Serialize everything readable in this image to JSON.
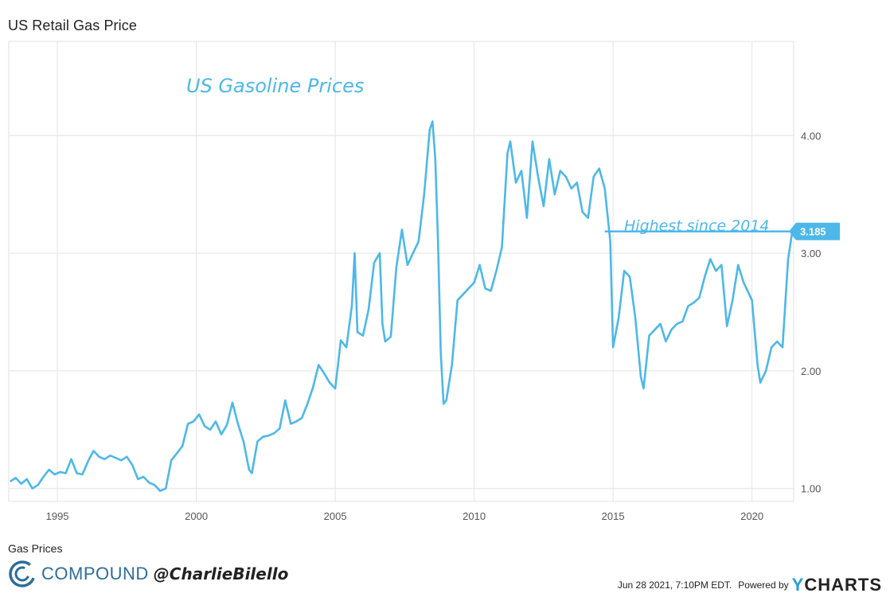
{
  "header": {
    "title": "US Retail Gas Price"
  },
  "footer": {
    "source_label": "Gas Prices",
    "brand_name": "COMPOUND",
    "brand_handle": "@CharlieBilello",
    "date": "Jun 28 2021, 7:10PM EDT.",
    "powered_by": "Powered by",
    "logo_first": "Y",
    "logo_rest": "CHARTS"
  },
  "colors": {
    "line": "#4db8e8",
    "grid": "#e4e4e4",
    "axis_text": "#555555",
    "brand": "#2d6e98",
    "logo_accent": "#2a9fd6"
  },
  "chart_data": {
    "type": "line",
    "title": "",
    "xlabel": "",
    "ylabel": "",
    "xlim": [
      1993.25,
      2021.5
    ],
    "ylim": [
      0.89,
      4.8
    ],
    "x_ticks": [
      1995,
      2000,
      2005,
      2010,
      2015,
      2020
    ],
    "x_tick_labels": [
      "1995",
      "2000",
      "2005",
      "2010",
      "2015",
      "2020"
    ],
    "y_ticks": [
      1,
      2,
      3,
      4
    ],
    "y_tick_labels": [
      "1.00",
      "2.00",
      "3.00",
      "4.00"
    ],
    "grid": true,
    "y_axis_position": "right",
    "series": [
      {
        "x": [
          1993.3,
          1993.5,
          1993.7,
          1993.9,
          1994.1,
          1994.3,
          1994.5,
          1994.7,
          1994.9,
          1995.1,
          1995.3,
          1995.5,
          1995.7,
          1995.9,
          1996.1,
          1996.3,
          1996.5,
          1996.7,
          1996.9,
          1997.1,
          1997.3,
          1997.5,
          1997.7,
          1997.9,
          1998.1,
          1998.3,
          1998.5,
          1998.7,
          1998.9,
          1999.1,
          1999.3,
          1999.5,
          1999.7,
          1999.9,
          2000.1,
          2000.3,
          2000.5,
          2000.7,
          2000.9,
          2001.1,
          2001.3,
          2001.5,
          2001.7,
          2001.9,
          2002.0,
          2002.2,
          2002.4,
          2002.6,
          2002.8,
          2003.0,
          2003.2,
          2003.4,
          2003.6,
          2003.8,
          2004.0,
          2004.2,
          2004.4,
          2004.6,
          2004.8,
          2005.0,
          2005.2,
          2005.4,
          2005.6,
          2005.7,
          2005.8,
          2006.0,
          2006.2,
          2006.4,
          2006.6,
          2006.7,
          2006.8,
          2007.0,
          2007.2,
          2007.4,
          2007.6,
          2007.8,
          2008.0,
          2008.2,
          2008.4,
          2008.5,
          2008.6,
          2008.7,
          2008.8,
          2008.9,
          2009.0,
          2009.2,
          2009.4,
          2009.6,
          2009.8,
          2010.0,
          2010.2,
          2010.4,
          2010.6,
          2010.8,
          2011.0,
          2011.2,
          2011.3,
          2011.5,
          2011.7,
          2011.9,
          2012.1,
          2012.3,
          2012.5,
          2012.7,
          2012.9,
          2013.1,
          2013.3,
          2013.5,
          2013.7,
          2013.9,
          2014.1,
          2014.3,
          2014.5,
          2014.7,
          2014.9,
          2015.0,
          2015.2,
          2015.4,
          2015.6,
          2015.8,
          2016.0,
          2016.1,
          2016.3,
          2016.5,
          2016.7,
          2016.9,
          2017.1,
          2017.3,
          2017.5,
          2017.7,
          2017.9,
          2018.1,
          2018.3,
          2018.5,
          2018.7,
          2018.9,
          2019.1,
          2019.3,
          2019.5,
          2019.7,
          2019.9,
          2020.0,
          2020.2,
          2020.3,
          2020.5,
          2020.7,
          2020.9,
          2021.1,
          2021.3,
          2021.45
        ],
        "y": [
          1.06,
          1.09,
          1.04,
          1.08,
          1.0,
          1.03,
          1.1,
          1.16,
          1.12,
          1.14,
          1.13,
          1.25,
          1.13,
          1.12,
          1.23,
          1.32,
          1.27,
          1.25,
          1.28,
          1.26,
          1.24,
          1.27,
          1.2,
          1.08,
          1.1,
          1.05,
          1.03,
          0.98,
          1.0,
          1.24,
          1.3,
          1.36,
          1.55,
          1.57,
          1.63,
          1.53,
          1.5,
          1.57,
          1.46,
          1.54,
          1.73,
          1.55,
          1.4,
          1.16,
          1.13,
          1.4,
          1.44,
          1.45,
          1.47,
          1.51,
          1.75,
          1.55,
          1.57,
          1.6,
          1.72,
          1.86,
          2.05,
          1.98,
          1.9,
          1.85,
          2.26,
          2.2,
          2.55,
          3.0,
          2.33,
          2.3,
          2.52,
          2.92,
          3.0,
          2.4,
          2.25,
          2.29,
          2.88,
          3.2,
          2.9,
          3.0,
          3.1,
          3.5,
          4.05,
          4.12,
          3.8,
          3.1,
          2.15,
          1.72,
          1.75,
          2.05,
          2.6,
          2.65,
          2.7,
          2.75,
          2.9,
          2.7,
          2.68,
          2.85,
          3.05,
          3.85,
          3.95,
          3.6,
          3.7,
          3.3,
          3.95,
          3.65,
          3.4,
          3.8,
          3.5,
          3.7,
          3.65,
          3.55,
          3.6,
          3.35,
          3.3,
          3.65,
          3.72,
          3.55,
          3.1,
          2.2,
          2.45,
          2.85,
          2.8,
          2.45,
          1.95,
          1.85,
          2.3,
          2.35,
          2.4,
          2.25,
          2.35,
          2.4,
          2.42,
          2.55,
          2.58,
          2.62,
          2.8,
          2.95,
          2.85,
          2.9,
          2.38,
          2.6,
          2.9,
          2.75,
          2.65,
          2.6,
          2.05,
          1.9,
          2.0,
          2.2,
          2.25,
          2.2,
          2.95,
          3.185
        ]
      }
    ],
    "annotations": [
      {
        "text": "US Gasoline Prices",
        "color": "#4db8e8"
      },
      {
        "text": "Highest since 2014",
        "color": "#4db8e8",
        "ref_x": 2014.7,
        "ref_y": 3.185
      }
    ],
    "last_value_label": "3.185"
  }
}
